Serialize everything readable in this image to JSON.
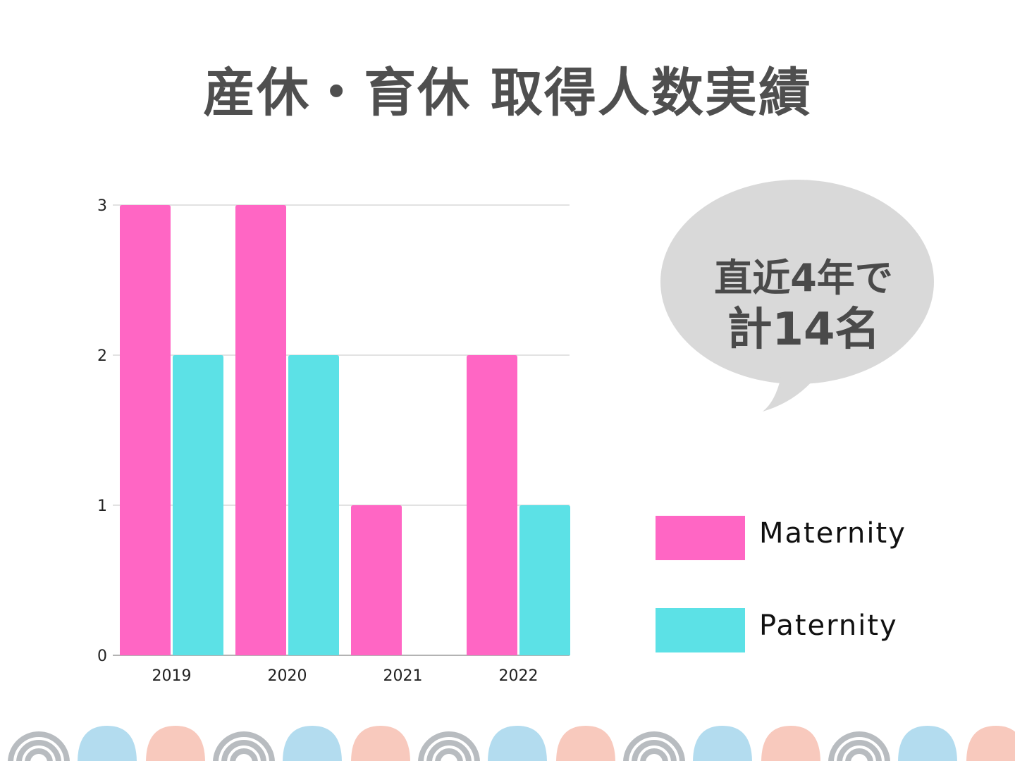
{
  "title": "産休・育休 取得人数実績",
  "bubble": {
    "line1": "直近4年で",
    "line2": "計14名"
  },
  "colors": {
    "maternity": "#ff66c4",
    "paternity": "#5ce1e6",
    "grid": "#d9d9d9",
    "bubble": "#d9d9d9"
  },
  "chart_data": {
    "type": "bar",
    "categories": [
      "2019",
      "2020",
      "2021",
      "2022"
    ],
    "series": [
      {
        "name": "Maternity",
        "values": [
          3,
          3,
          1,
          2
        ],
        "color": "#ff66c4"
      },
      {
        "name": "Paternity",
        "values": [
          2,
          2,
          0,
          1
        ],
        "color": "#5ce1e6"
      }
    ],
    "yticks": [
      "0",
      "1",
      "2",
      "3"
    ],
    "ylim": [
      0,
      3
    ],
    "grid": true,
    "legend": "right"
  }
}
